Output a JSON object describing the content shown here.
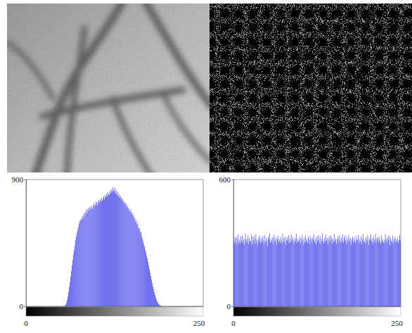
{
  "chart_data": [
    {
      "type": "histogram",
      "color": "#4040e8",
      "grid": false,
      "xlim": [
        0,
        256
      ],
      "xticks": [
        0,
        250
      ],
      "ylim": [
        0,
        900
      ],
      "yticks": [
        0,
        900
      ],
      "bins": [
        0,
        1,
        2,
        3,
        4,
        5,
        6,
        7,
        8,
        9,
        10,
        11,
        12,
        13,
        14,
        15,
        16,
        17,
        18,
        19,
        20,
        21,
        22,
        23,
        24,
        25,
        26,
        27,
        28,
        29,
        30,
        31,
        32,
        33,
        34,
        35,
        36,
        37,
        38,
        39,
        40,
        41,
        42,
        43,
        44,
        45,
        46,
        47,
        48,
        49,
        50,
        51,
        52,
        53,
        54,
        55,
        56,
        57,
        58,
        59,
        60,
        61,
        62,
        63,
        64,
        65,
        66,
        67,
        68,
        69,
        70,
        71,
        72,
        73,
        74,
        75,
        76,
        77,
        78,
        79,
        80,
        81,
        82,
        83,
        84,
        85,
        86,
        87,
        88,
        89,
        90,
        91,
        92,
        93,
        94,
        95,
        96,
        97,
        98,
        99,
        100,
        101,
        102,
        103,
        104,
        105,
        106,
        107,
        108,
        109,
        110,
        111,
        112,
        113,
        114,
        115,
        116,
        117,
        118,
        119,
        120,
        121,
        122,
        123,
        124,
        125,
        126,
        127,
        128,
        129,
        130,
        131,
        132,
        133,
        134,
        135,
        136,
        137,
        138,
        139,
        140,
        141,
        142,
        143,
        144,
        145,
        146,
        147,
        148,
        149,
        150,
        151,
        152,
        153,
        154,
        155,
        156,
        157,
        158,
        159,
        160,
        161,
        162,
        163,
        164,
        165,
        166,
        167,
        168,
        169,
        170,
        171,
        172,
        173,
        174,
        175,
        176,
        177,
        178,
        179,
        180,
        181,
        182,
        183,
        184,
        185,
        186,
        187,
        188,
        189,
        190,
        191,
        192,
        193,
        194,
        195,
        196,
        197,
        198,
        199,
        200,
        201,
        202,
        203,
        204,
        205,
        206,
        207,
        208,
        209,
        210,
        211,
        212,
        213,
        214,
        215,
        216,
        217,
        218,
        219,
        220,
        221,
        222,
        223,
        224,
        225,
        226,
        227,
        228,
        229,
        230,
        231,
        232,
        233,
        234,
        235,
        236,
        237,
        238,
        239,
        240,
        241,
        242,
        243,
        244,
        245,
        246,
        247,
        248,
        249,
        250,
        251,
        252,
        253,
        254,
        255,
        256
      ],
      "values": [
        0,
        0,
        0,
        0,
        0,
        0,
        0,
        0,
        0,
        0,
        0,
        0,
        0,
        0,
        0,
        0,
        0,
        0,
        0,
        0,
        0,
        0,
        0,
        0,
        0,
        0,
        0,
        0,
        0,
        0,
        0,
        0,
        0,
        0,
        0,
        0,
        0,
        0,
        0,
        0,
        0,
        0,
        0,
        0,
        0,
        0,
        0,
        0,
        0,
        0,
        0,
        0,
        0,
        0,
        0,
        2,
        5,
        12,
        25,
        45,
        70,
        100,
        135,
        170,
        210,
        250,
        290,
        330,
        365,
        400,
        430,
        470,
        495,
        520,
        540,
        560,
        585,
        600,
        615,
        610,
        625,
        640,
        620,
        650,
        665,
        640,
        670,
        690,
        660,
        685,
        700,
        680,
        705,
        690,
        715,
        700,
        690,
        720,
        735,
        710,
        720,
        745,
        730,
        715,
        740,
        755,
        735,
        760,
        745,
        770,
        750,
        765,
        780,
        760,
        790,
        775,
        800,
        780,
        810,
        795,
        790,
        820,
        805,
        830,
        810,
        845,
        825,
        815,
        840,
        800,
        820,
        790,
        810,
        780,
        795,
        770,
        785,
        760,
        770,
        745,
        755,
        730,
        740,
        720,
        735,
        705,
        715,
        690,
        700,
        680,
        670,
        690,
        655,
        665,
        640,
        650,
        620,
        630,
        600,
        610,
        580,
        590,
        560,
        545,
        555,
        520,
        530,
        495,
        480,
        460,
        440,
        425,
        400,
        385,
        360,
        340,
        315,
        290,
        265,
        240,
        215,
        190,
        165,
        140,
        120,
        100,
        80,
        62,
        48,
        35,
        25,
        17,
        11,
        7,
        4,
        2,
        1,
        0,
        0,
        0,
        0,
        0,
        0,
        0,
        0,
        0,
        0,
        0,
        0,
        0,
        0,
        0,
        0,
        0,
        0,
        0,
        0,
        0,
        0,
        0,
        0,
        0,
        0,
        0,
        0,
        0,
        0,
        0,
        0,
        0,
        0,
        0,
        0,
        0,
        0,
        0,
        0,
        0,
        0,
        0,
        0,
        0,
        0,
        0,
        0,
        0,
        0,
        0,
        0,
        0,
        0,
        0,
        0,
        0,
        0,
        0
      ]
    },
    {
      "type": "histogram",
      "color": "#4040e8",
      "grid": false,
      "xlim": [
        0,
        256
      ],
      "xticks": [
        0,
        250
      ],
      "ylim": [
        0,
        600
      ],
      "yticks": [
        0,
        600
      ],
      "bins": [
        0,
        1,
        2,
        3,
        4,
        5,
        6,
        7,
        8,
        9,
        10,
        11,
        12,
        13,
        14,
        15,
        16,
        17,
        18,
        19,
        20,
        21,
        22,
        23,
        24,
        25,
        26,
        27,
        28,
        29,
        30,
        31,
        32,
        33,
        34,
        35,
        36,
        37,
        38,
        39,
        40,
        41,
        42,
        43,
        44,
        45,
        46,
        47,
        48,
        49,
        50,
        51,
        52,
        53,
        54,
        55,
        56,
        57,
        58,
        59,
        60,
        61,
        62,
        63,
        64,
        65,
        66,
        67,
        68,
        69,
        70,
        71,
        72,
        73,
        74,
        75,
        76,
        77,
        78,
        79,
        80,
        81,
        82,
        83,
        84,
        85,
        86,
        87,
        88,
        89,
        90,
        91,
        92,
        93,
        94,
        95,
        96,
        97,
        98,
        99,
        100,
        101,
        102,
        103,
        104,
        105,
        106,
        107,
        108,
        109,
        110,
        111,
        112,
        113,
        114,
        115,
        116,
        117,
        118,
        119,
        120,
        121,
        122,
        123,
        124,
        125,
        126,
        127,
        128,
        129,
        130,
        131,
        132,
        133,
        134,
        135,
        136,
        137,
        138,
        139,
        140,
        141,
        142,
        143,
        144,
        145,
        146,
        147,
        148,
        149,
        150,
        151,
        152,
        153,
        154,
        155,
        156,
        157,
        158,
        159,
        160,
        161,
        162,
        163,
        164,
        165,
        166,
        167,
        168,
        169,
        170,
        171,
        172,
        173,
        174,
        175,
        176,
        177,
        178,
        179,
        180,
        181,
        182,
        183,
        184,
        185,
        186,
        187,
        188,
        189,
        190,
        191,
        192,
        193,
        194,
        195,
        196,
        197,
        198,
        199,
        200,
        201,
        202,
        203,
        204,
        205,
        206,
        207,
        208,
        209,
        210,
        211,
        212,
        213,
        214,
        215,
        216,
        217,
        218,
        219,
        220,
        221,
        222,
        223,
        224,
        225,
        226,
        227,
        228,
        229,
        230,
        231,
        232,
        233,
        234,
        235,
        236,
        237,
        238,
        239,
        240,
        241,
        242,
        243,
        244,
        245,
        246,
        247,
        248,
        249,
        250,
        251,
        252,
        253,
        254,
        255,
        256
      ],
      "values": [
        312,
        298,
        325,
        305,
        331,
        290,
        318,
        340,
        302,
        315,
        296,
        329,
        310,
        335,
        300,
        321,
        288,
        316,
        344,
        307,
        319,
        301,
        336,
        294,
        323,
        311,
        305,
        338,
        292,
        327,
        309,
        333,
        297,
        318,
        341,
        303,
        314,
        289,
        326,
        311,
        335,
        299,
        320,
        306,
        329,
        315,
        293,
        337,
        310,
        302,
        324,
        312,
        287,
        330,
        318,
        345,
        300,
        316,
        308,
        327,
        295,
        321,
        339,
        304,
        313,
        326,
        291,
        319,
        334,
        306,
        317,
        300,
        328,
        311,
        296,
        342,
        308,
        322,
        303,
        331,
        290,
        314,
        327,
        309,
        336,
        298,
        320,
        305,
        339,
        313,
        328,
        303,
        316,
        293,
        324,
        310,
        343,
        299,
        318,
        307,
        311,
        332,
        297,
        321,
        306,
        338,
        314,
        289,
        325,
        302,
        336,
        308,
        319,
        300,
        329,
        316,
        295,
        334,
        311,
        322,
        299,
        326,
        313,
        340,
        304,
        318,
        292,
        328,
        309,
        337,
        315,
        301,
        333,
        296,
        320,
        307,
        344,
        311,
        298,
        324,
        306,
        339,
        310,
        323,
        291,
        317,
        330,
        302,
        335,
        313,
        327,
        297,
        318,
        305,
        342,
        309,
        321,
        294,
        316,
        331,
        303,
        320,
        336,
        312,
        299,
        326,
        308,
        340,
        301,
        319,
        334,
        310,
        295,
        328,
        314,
        302,
        337,
        318,
        306,
        323,
        292,
        317,
        330,
        304,
        325,
        311,
        298,
        333,
        316,
        309,
        321,
        338,
        300,
        315,
        307,
        332,
        294,
        319,
        341,
        305,
        310,
        296,
        327,
        318,
        303,
        336,
        312,
        289,
        324,
        314,
        339,
        306,
        320,
        297,
        331,
        308,
        316,
        343,
        300,
        322,
        313,
        329,
        302,
        326,
        311,
        295,
        335,
        307,
        318,
        304,
        298,
        315,
        341,
        309,
        322,
        300,
        328,
        314,
        336,
        291,
        324,
        310,
        305,
        333,
        296,
        319,
        312,
        330,
        303,
        317,
        307,
        326,
        299,
        315,
        338,
        311
      ]
    }
  ]
}
